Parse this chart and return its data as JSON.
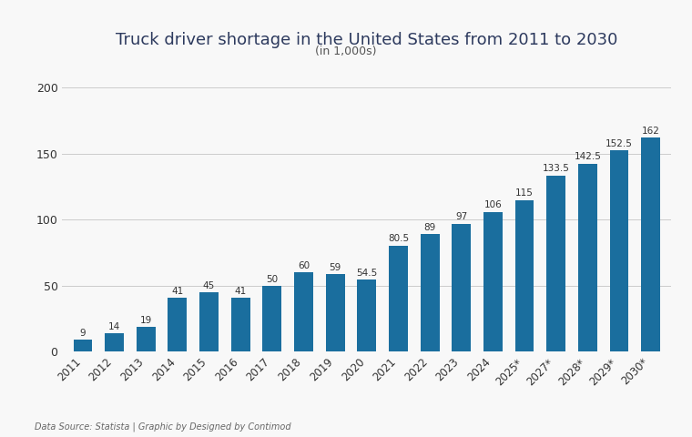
{
  "title": "Truck driver shortage in the United States from 2011 to 2030",
  "subtitle": "(in 1,000s)",
  "categories": [
    "2011",
    "2012",
    "2013",
    "2014",
    "2015",
    "2016",
    "2017",
    "2018",
    "2019",
    "2020",
    "2021",
    "2022",
    "2023",
    "2024",
    "2025*",
    "2027*",
    "2028*",
    "2029*",
    "2030*"
  ],
  "values": [
    9,
    14,
    19,
    41,
    45,
    41,
    50,
    60,
    59,
    54.5,
    80.5,
    89,
    97,
    106,
    115,
    133.5,
    142.5,
    152.5,
    162
  ],
  "bar_color": "#1a6e9e",
  "background_color": "#f8f8f8",
  "ylim": [
    0,
    215
  ],
  "yticks": [
    0,
    50,
    100,
    150,
    200
  ],
  "grid_color": "#cccccc",
  "label_fontsize": 7.5,
  "title_fontsize": 13,
  "subtitle_fontsize": 9,
  "tick_fontsize": 8.5,
  "ytick_fontsize": 9,
  "footer_text": "Data Source: Statista | Graphic by Designed by Contimod",
  "footer_fontsize": 7,
  "title_color": "#2d3a5e",
  "subtitle_color": "#555555",
  "tick_color": "#333333",
  "label_color": "#333333"
}
